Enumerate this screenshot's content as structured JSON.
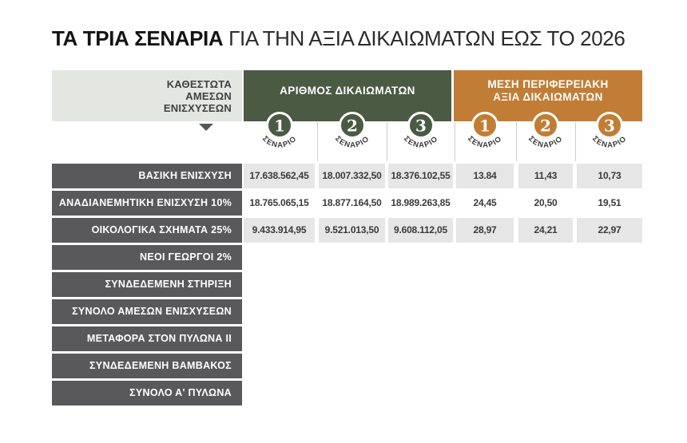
{
  "title": {
    "bold": "ΤΑ ΤΡΙΑ ΣΕΝΑΡΙΑ",
    "rest": " ΓΙΑ ΤΗΝ ΑΞΙΑ ΔΙΚΑΙΩΜΑΤΩΝ ΕΩΣ ΤΟ 2026"
  },
  "header": {
    "left_label": "ΚΑΘΕΣΤΩΤΑ\nΑΜΕΣΩΝ\nΕΝΙΣΧΥΣΕΩΝ",
    "groups": [
      {
        "label": "ΑΡΙΘΜΟΣ ΔΙΚΑΙΩΜΑΤΩΝ",
        "color": "#4a5a43",
        "scenario_word": "ΣΕΝΑΡΙΟ",
        "scenarios": [
          "1",
          "2",
          "3"
        ]
      },
      {
        "label": "ΜΕΣΗ ΠΕΡΙΦΕΡΕΙΑΚΗ\nΑΞΙΑ ΔΙΚΑΙΩΜΑΤΩΝ",
        "color": "#c17d36",
        "scenario_word": "ΣΕΝΑΡΙΟ",
        "scenarios": [
          "1",
          "2",
          "3"
        ]
      }
    ]
  },
  "chart_data": {
    "type": "table",
    "title": "ΤΑ ΤΡΙΑ ΣΕΝΑΡΙΑ ΓΙΑ ΤΗΝ ΑΞΙΑ ΔΙΚΑΙΩΜΑΤΩΝ ΕΩΣ ΤΟ 2026",
    "row_header": "ΚΑΘΕΣΤΩΤΑ ΑΜΕΣΩΝ ΕΝΙΣΧΥΣΕΩΝ",
    "column_groups": [
      {
        "label": "ΑΡΙΘΜΟΣ ΔΙΚΑΙΩΜΑΤΩΝ",
        "columns": [
          "ΣΕΝΑΡΙΟ 1",
          "ΣΕΝΑΡΙΟ 2",
          "ΣΕΝΑΡΙΟ 3"
        ]
      },
      {
        "label": "ΜΕΣΗ ΠΕΡΙΦΕΡΕΙΑΚΗ ΑΞΙΑ ΔΙΚΑΙΩΜΑΤΩΝ",
        "columns": [
          "ΣΕΝΑΡΙΟ 1",
          "ΣΕΝΑΡΙΟ 2",
          "ΣΕΝΑΡΙΟ 3"
        ]
      }
    ],
    "rows": [
      {
        "label": "ΒΑΣΙΚΗ ΕΝΙΣΧΥΣΗ",
        "values": [
          "17.638.562,45",
          "18.007.332,50",
          "18.376.102,55",
          "13.84",
          "11,43",
          "10,73"
        ]
      },
      {
        "label": "ΑΝΑΔΙΑΝΕΜΗΤΙΚΗ ΕΝΙΣΧΥΣΗ 10%",
        "values": [
          "18.765.065,15",
          "18.877.164,50",
          "18.989.263,85",
          "24,45",
          "20,50",
          "19,51"
        ]
      },
      {
        "label": "ΟΙΚΟΛΟΓΙΚΑ ΣΧΗΜΑΤΑ 25%",
        "values": [
          "9.433.914,95",
          "9.521.013,50",
          "9.608.112,05",
          "28,97",
          "24,21",
          "22,97"
        ]
      },
      {
        "label": "ΝΕΟΙ ΓΕΩΡΓΟΙ 2%",
        "values": []
      },
      {
        "label": "ΣΥΝΔΕΔΕΜΕΝΗ ΣΤΗΡΙΞΗ",
        "values": []
      },
      {
        "label": "ΣΥΝΟΛΟ ΑΜΕΣΩΝ ΕΝΙΣΧΥΣΕΩΝ",
        "values": []
      },
      {
        "label": "ΜΕΤΑΦΟΡΑ ΣΤΟΝ ΠΥΛΩΝΑ ΙΙ",
        "values": []
      },
      {
        "label": "ΣΥΝΔΕΔΕΜΕΝΗ ΒΑΜΒΑΚΟΣ",
        "values": []
      },
      {
        "label": "ΣΥΝΟΛΟ Α' ΠΥΛΩΝΑ",
        "values": []
      }
    ]
  },
  "colors": {
    "green": "#4a5a43",
    "orange": "#c17d36",
    "row_label_bg": "#59595b",
    "shaded_cell": "#e6e6e6",
    "header_left_bg": "#e4e6e2",
    "value_text": "#3a3a3a"
  }
}
